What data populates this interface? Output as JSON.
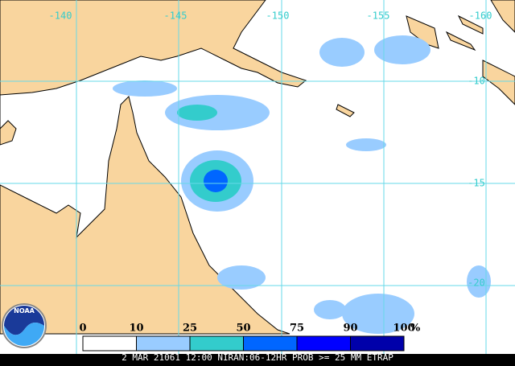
{
  "map": {
    "lon_labels": [
      "-140",
      "-145",
      "-150",
      "-155",
      "-160"
    ],
    "lat_labels": [
      "-10",
      "-15",
      "-20"
    ],
    "legend": {
      "labels": [
        "0",
        "10",
        "25",
        "50",
        "75",
        "90",
        "100"
      ],
      "unit": "%",
      "colors": [
        "#ffffff",
        "#99ccff",
        "#33cccc",
        "#0066ff",
        "#0000ff",
        "#0000aa"
      ]
    },
    "logo": "NOAA",
    "caption": "2 MAR 21061 12:00 NIRAN:06-12HR PROB >= 25 MM ETRAP"
  }
}
